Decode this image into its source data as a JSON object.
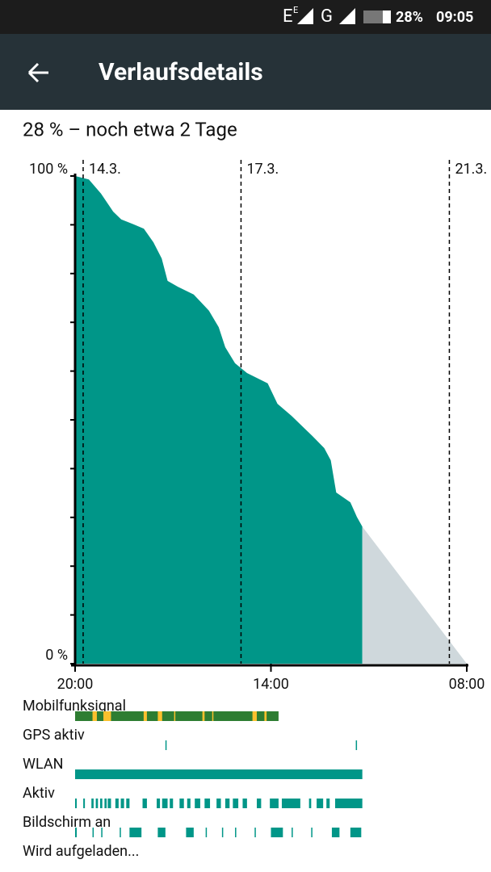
{
  "status_bar": {
    "network": "E",
    "network_sub": "E",
    "network2": "G",
    "battery": "28%",
    "time": "09:05"
  },
  "app_bar": {
    "title": "Verlaufsdetails"
  },
  "summary": "28 % – noch etwa 2 Tage",
  "chart_data": {
    "type": "area",
    "x": [
      0,
      1.26,
      2.38,
      3.5,
      4.24,
      5.36,
      6.32,
      7.2,
      7.96,
      8.5,
      9.44,
      10.9,
      12.3,
      13.2,
      13.8,
      14.7,
      15.8,
      17.7,
      18.6,
      19.9,
      21.8,
      22.9,
      23.5,
      24.0,
      25.3,
      25.9,
      26.4
    ],
    "values": [
      100,
      99.3,
      96.4,
      92.7,
      91.1,
      90.1,
      89.2,
      86.4,
      83.1,
      78.5,
      77.3,
      75.7,
      72.4,
      69.0,
      64.9,
      61.6,
      59.6,
      57.5,
      53.3,
      50.8,
      46.7,
      44.2,
      41.7,
      35.1,
      33.1,
      30.1,
      28.1
    ],
    "color": "#009688",
    "projection": {
      "x": [
        26.4,
        36
      ],
      "values": [
        28.1,
        0
      ],
      "color": "#cfd8dc"
    },
    "xlim": [
      0,
      36
    ],
    "ylim": [
      0,
      100
    ],
    "xticks": [
      {
        "value": 0,
        "label": "20:00"
      },
      {
        "value": 18,
        "label": "14:00"
      },
      {
        "value": 36,
        "label": "08:00"
      }
    ],
    "yticks": [
      {
        "value": 100,
        "label": "100 %"
      },
      {
        "value": 0,
        "label": "0 %"
      }
    ],
    "yminor_ticks": [
      10,
      20,
      30,
      40,
      50,
      60,
      70,
      80,
      90
    ],
    "date_markers": [
      {
        "value": 0.74,
        "label": "14.3."
      },
      {
        "value": 15.25,
        "label": "17.3."
      },
      {
        "value": 34.4,
        "label": "21.3."
      }
    ],
    "tracks": [
      {
        "name": "Mobilfunksignal",
        "color": "#2e7d32",
        "segments": [
          [
            0,
            18.7
          ]
        ],
        "highlight_color": "#fbc02d",
        "highlights": [
          [
            1.6,
            2.0
          ],
          [
            2.6,
            3.3
          ],
          [
            6.3,
            6.6
          ],
          [
            7.6,
            8.0
          ],
          [
            9.1,
            9.2
          ],
          [
            11.7,
            11.9
          ],
          [
            12.6,
            12.7
          ],
          [
            16.3,
            16.7
          ],
          [
            17.4,
            17.6
          ]
        ]
      },
      {
        "name": "GPS aktiv",
        "color": "#009688",
        "segments": [
          [
            8.3,
            8.4
          ],
          [
            25.8,
            25.9
          ]
        ]
      },
      {
        "name": "WLAN",
        "color": "#009688",
        "segments": [
          [
            0,
            26.4
          ]
        ]
      },
      {
        "name": "Aktiv",
        "color": "#009688",
        "segments": [
          [
            0,
            0.15
          ],
          [
            0.75,
            0.9
          ],
          [
            1.5,
            1.7
          ],
          [
            1.9,
            2.1
          ],
          [
            2.3,
            2.5
          ],
          [
            2.7,
            2.9
          ],
          [
            3.0,
            3.3
          ],
          [
            3.7,
            4.0
          ],
          [
            4.2,
            4.5
          ],
          [
            4.7,
            5.0
          ],
          [
            6.2,
            6.6
          ],
          [
            7.5,
            7.8
          ],
          [
            8.0,
            8.5
          ],
          [
            8.7,
            9.0
          ],
          [
            9.6,
            10.0
          ],
          [
            10.3,
            10.6
          ],
          [
            11.0,
            11.5
          ],
          [
            11.9,
            12.4
          ],
          [
            13.0,
            13.4
          ],
          [
            13.8,
            14.2
          ],
          [
            14.5,
            15.0
          ],
          [
            15.4,
            15.8
          ],
          [
            16.7,
            17.1
          ],
          [
            17.9,
            18.7
          ],
          [
            19.0,
            20.7
          ],
          [
            21.5,
            21.7
          ],
          [
            22.2,
            22.8
          ],
          [
            23.1,
            23.4
          ],
          [
            23.9,
            26.4
          ]
        ]
      },
      {
        "name": "Bildschirm an",
        "color": "#009688",
        "segments": [
          [
            0,
            0.15
          ],
          [
            1.6,
            1.7
          ],
          [
            2.4,
            2.5
          ],
          [
            4.1,
            4.2
          ],
          [
            5.0,
            6.1
          ],
          [
            7.6,
            8.3
          ],
          [
            10.2,
            10.9
          ],
          [
            12.0,
            12.1
          ],
          [
            13.5,
            13.6
          ],
          [
            14.7,
            14.8
          ],
          [
            16.5,
            16.6
          ],
          [
            18.0,
            19.1
          ],
          [
            19.9,
            20.0
          ],
          [
            21.7,
            21.8
          ],
          [
            23.6,
            24.3
          ],
          [
            25.3,
            26.3
          ]
        ]
      },
      {
        "name": "Wird aufgeladen...",
        "color": "#009688",
        "segments": []
      }
    ]
  }
}
